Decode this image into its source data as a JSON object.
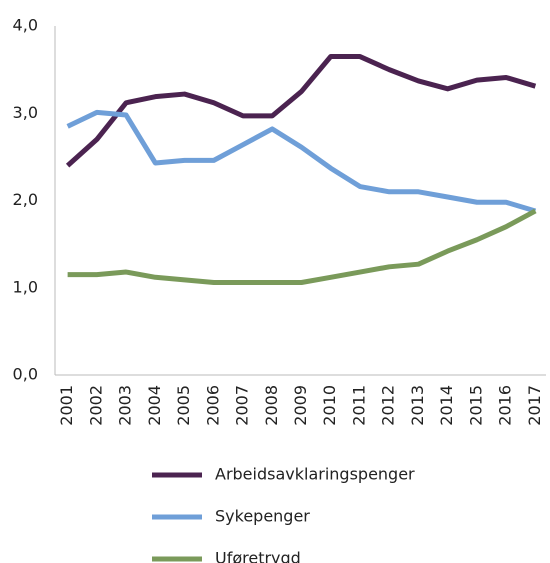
{
  "chart_data": {
    "type": "line",
    "categories": [
      "2001",
      "2002",
      "2003",
      "2004",
      "2005",
      "2006",
      "2007",
      "2008",
      "2009",
      "2010",
      "2011",
      "2012",
      "2013",
      "2014",
      "2015",
      "2016",
      "2017"
    ],
    "series": [
      {
        "name": "Arbeidsavklaringspenger",
        "color": "#4b2350",
        "values": [
          2.4,
          2.7,
          3.12,
          3.19,
          3.22,
          3.12,
          2.97,
          2.97,
          3.25,
          3.65,
          3.65,
          3.5,
          3.37,
          3.28,
          3.38,
          3.41,
          3.31
        ]
      },
      {
        "name": "Sykepenger",
        "color": "#6f9fd8",
        "values": [
          2.85,
          3.01,
          2.98,
          2.43,
          2.46,
          2.46,
          2.64,
          2.82,
          2.61,
          2.37,
          2.16,
          2.1,
          2.1,
          2.04,
          1.98,
          1.98,
          1.88
        ]
      },
      {
        "name": "Uføretrygd",
        "color": "#7a9a5a",
        "values": [
          1.15,
          1.15,
          1.18,
          1.12,
          1.09,
          1.06,
          1.06,
          1.06,
          1.06,
          1.12,
          1.18,
          1.24,
          1.27,
          1.42,
          1.55,
          1.7,
          1.88
        ]
      }
    ],
    "ylim": [
      0,
      4
    ],
    "yticks": [
      {
        "value": 0,
        "label": "0,0"
      },
      {
        "value": 1,
        "label": "1,0"
      },
      {
        "value": 2,
        "label": "2,0"
      },
      {
        "value": 3,
        "label": "3,0"
      },
      {
        "value": 4,
        "label": "4,0"
      }
    ]
  }
}
